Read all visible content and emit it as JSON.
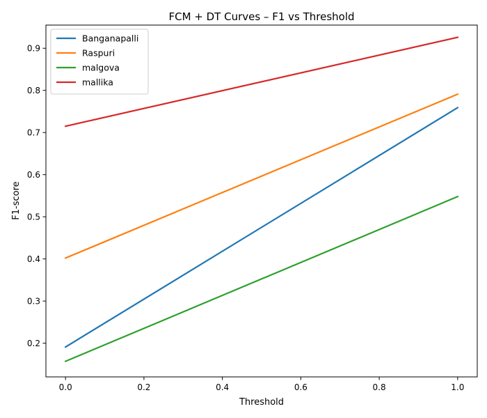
{
  "chart_data": {
    "type": "line",
    "title": "FCM + DT Curves – F1 vs Threshold",
    "xlabel": "Threshold",
    "ylabel": "F1-score",
    "xlim": [
      -0.05,
      1.05
    ],
    "ylim": [
      0.12,
      0.955
    ],
    "xticks": [
      0.0,
      0.2,
      0.4,
      0.6,
      0.8,
      1.0
    ],
    "xtick_labels": [
      "0.0",
      "0.2",
      "0.4",
      "0.6",
      "0.8",
      "1.0"
    ],
    "yticks": [
      0.2,
      0.3,
      0.4,
      0.5,
      0.6,
      0.7,
      0.8,
      0.9
    ],
    "ytick_labels": [
      "0.2",
      "0.3",
      "0.4",
      "0.5",
      "0.6",
      "0.7",
      "0.8",
      "0.9"
    ],
    "grid": false,
    "legend_position": "top-left",
    "x": [
      0.0,
      1.0
    ],
    "series": [
      {
        "name": "Banganapalli",
        "color": "#1f77b4",
        "values": [
          0.191,
          0.759
        ]
      },
      {
        "name": "Raspuri",
        "color": "#ff7f0e",
        "values": [
          0.402,
          0.791
        ]
      },
      {
        "name": "malgova",
        "color": "#2ca02c",
        "values": [
          0.157,
          0.548
        ]
      },
      {
        "name": "mallika",
        "color": "#d62728",
        "values": [
          0.715,
          0.926
        ]
      }
    ]
  }
}
